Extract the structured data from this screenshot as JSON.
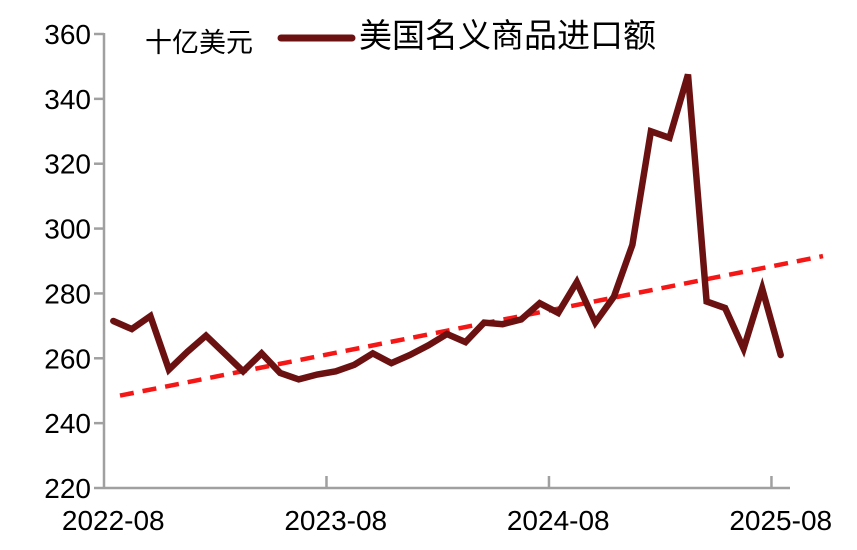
{
  "chart": {
    "unit_label": "十亿美元",
    "legend_label": "美国名义商品进口额"
  },
  "colors": {
    "series_line": "#6c1111",
    "trend_line": "#f51616",
    "axis": "#a0a0a0",
    "text": "#000000",
    "background": "#ffffff"
  },
  "chart_data": {
    "type": "line",
    "title": "",
    "unit": "十亿美元",
    "xlabel": "",
    "ylabel": "十亿美元",
    "ylim": [
      220,
      360
    ],
    "y_ticks": [
      220,
      240,
      260,
      280,
      300,
      320,
      340,
      360
    ],
    "x_tick_labels": [
      "2022-08",
      "2023-08",
      "2024-08",
      "2025-08"
    ],
    "grid": false,
    "legend_position": "top",
    "categories": [
      "2022-08",
      "2022-09",
      "2022-10",
      "2022-11",
      "2022-12",
      "2023-01",
      "2023-02",
      "2023-03",
      "2023-04",
      "2023-05",
      "2023-06",
      "2023-07",
      "2023-08",
      "2023-09",
      "2023-10",
      "2023-11",
      "2023-12",
      "2024-01",
      "2024-02",
      "2024-03",
      "2024-04",
      "2024-05",
      "2024-06",
      "2024-07",
      "2024-08",
      "2024-09",
      "2024-10",
      "2024-11",
      "2024-12",
      "2025-01",
      "2025-02",
      "2025-03",
      "2025-04",
      "2025-05",
      "2025-06",
      "2025-07",
      "2025-08"
    ],
    "series": [
      {
        "name": "美国名义商品进口额",
        "color": "#6c1111",
        "values": [
          271.5,
          269,
          273,
          256.5,
          262,
          267,
          261.5,
          256,
          261.5,
          255.5,
          253.5,
          255,
          256,
          258,
          261.5,
          258.5,
          261,
          264,
          267.5,
          265,
          271,
          270.5,
          272,
          277,
          274,
          283.5,
          271,
          279,
          295,
          330,
          328,
          347.5,
          277.5,
          275.5,
          263,
          281.5,
          261
        ]
      }
    ],
    "trendline": {
      "type": "linear",
      "style": "dashed",
      "color": "#f51616",
      "start_value": 248.5,
      "end_value": 291.5
    }
  }
}
